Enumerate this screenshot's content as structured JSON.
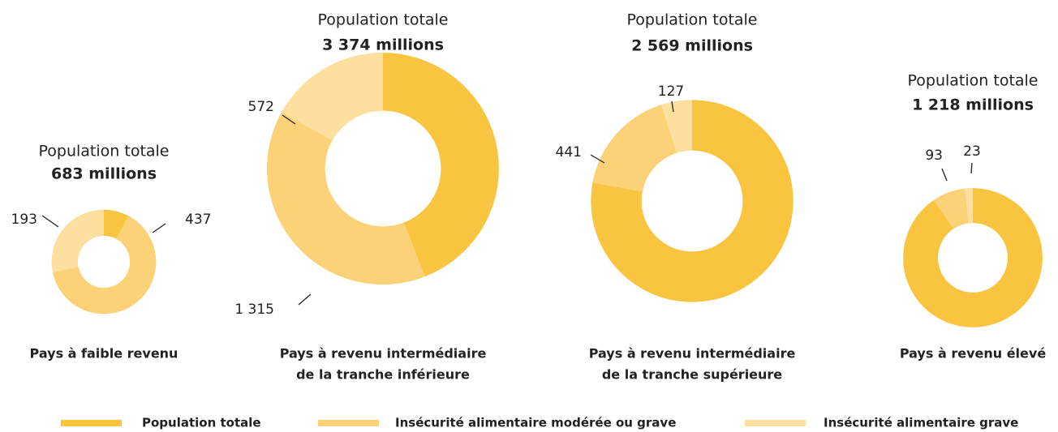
{
  "chart_data": [
    {
      "type": "pie",
      "title": "Population totale",
      "caption": [
        "Pays à faible revenu"
      ],
      "categories": [
        "Population totale",
        "Insécurité alimentaire modérée ou grave",
        "Insécurité alimentaire grave"
      ],
      "values": [
        683,
        437,
        193
      ],
      "value_labels": [
        "683 millions",
        "437",
        "193"
      ],
      "colors": [
        "#f9c440",
        "#fbd278",
        "#fde09f"
      ]
    },
    {
      "type": "pie",
      "title": "Population totale",
      "caption": [
        "Pays à revenu intermédiaire",
        "de la tranche inférieure"
      ],
      "categories": [
        "Population totale",
        "Insécurité alimentaire modérée ou grave",
        "Insécurité alimentaire grave"
      ],
      "values": [
        3374,
        1315,
        572
      ],
      "value_labels": [
        "3 374 millions",
        "1 315",
        "572"
      ],
      "colors": [
        "#f9c440",
        "#fbd278",
        "#fde09f"
      ]
    },
    {
      "type": "pie",
      "title": "Population totale",
      "caption": [
        "Pays à revenu intermédiaire",
        "de la tranche supérieure"
      ],
      "categories": [
        "Population totale",
        "Insécurité alimentaire modérée ou grave",
        "Insécurité alimentaire grave"
      ],
      "values": [
        2569,
        441,
        127
      ],
      "value_labels": [
        "2 569 millions",
        "441",
        "127"
      ],
      "colors": [
        "#f9c440",
        "#fbd278",
        "#fde09f"
      ]
    },
    {
      "type": "pie",
      "title": "Population totale",
      "caption": [
        "Pays à revenu élevé"
      ],
      "categories": [
        "Population totale",
        "Insécurité alimentaire modérée ou grave",
        "Insécurité alimentaire grave"
      ],
      "values": [
        1218,
        93,
        23
      ],
      "value_labels": [
        "1 218 millions",
        "93",
        "23"
      ],
      "colors": [
        "#f9c440",
        "#fbd278",
        "#fde09f"
      ]
    }
  ]
}
